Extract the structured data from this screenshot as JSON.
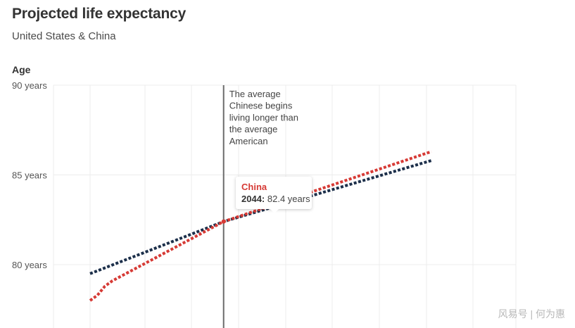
{
  "header": {
    "title": "Projected life expectancy",
    "subtitle": "United States & China"
  },
  "chart_data": {
    "type": "line",
    "title": "Projected life expectancy",
    "subtitle": "United States & China",
    "ylabel": "Age",
    "ylim": [
      77,
      90
    ],
    "xlim": [
      2022,
      2073
    ],
    "yticks": [
      {
        "value": 90,
        "label": "90 years"
      },
      {
        "value": 85,
        "label": "85 years"
      },
      {
        "value": 80,
        "label": "80 years"
      }
    ],
    "x_gridlines": [
      2026,
      2032,
      2038,
      2044,
      2050,
      2056,
      2062,
      2068,
      2072
    ],
    "grid": true,
    "legend": "none",
    "series": [
      {
        "name": "China",
        "color": "#d63a35",
        "style": "dotted",
        "x": [
          2026,
          2027,
          2028,
          2029,
          2044,
          2072
        ],
        "y": [
          78.0,
          78.3,
          78.8,
          79.1,
          82.4,
          86.3
        ]
      },
      {
        "color": "#1c2f4a",
        "style": "dotted",
        "x": [
          2026,
          2044,
          2072
        ],
        "y": [
          79.5,
          82.4,
          85.8
        ]
      }
    ],
    "annotation": {
      "x": 2044,
      "lines": [
        "The average",
        "Chinese begins",
        "living longer than",
        "the average",
        "American"
      ]
    }
  },
  "tooltip": {
    "series": "China",
    "year": "2044:",
    "value": "82.4 years"
  },
  "watermark": "风易号 | 何为惠"
}
